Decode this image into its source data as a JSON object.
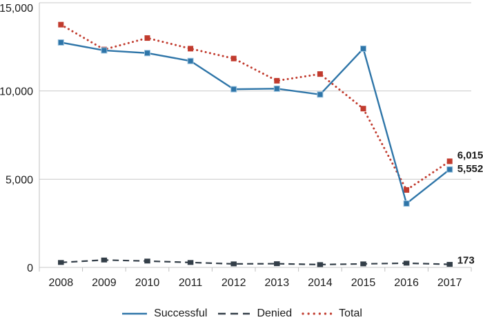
{
  "chart_data": {
    "type": "line",
    "title": "",
    "categories": [
      "2008",
      "2009",
      "2010",
      "2011",
      "2012",
      "2013",
      "2014",
      "2015",
      "2016",
      "2017"
    ],
    "series": [
      {
        "name": "Successful",
        "style": "solid",
        "marker": "square",
        "color": "#2E75A8",
        "marker_edge": "#9CC3DF",
        "values": [
          12750,
          12300,
          12150,
          11700,
          10100,
          10130,
          9800,
          12400,
          3620,
          5552
        ],
        "end_label": "5,552"
      },
      {
        "name": "Denied",
        "style": "dashed",
        "marker": "square",
        "color": "#333E48",
        "marker_edge": "",
        "values": [
          280,
          420,
          360,
          280,
          200,
          210,
          160,
          200,
          240,
          173
        ],
        "end_label": "173"
      },
      {
        "name": "Total",
        "style": "dotted",
        "marker": "square",
        "color": "#C13B2E",
        "marker_edge": "",
        "values": [
          13760,
          12350,
          13000,
          12400,
          11840,
          10580,
          10960,
          9000,
          4390,
          6015
        ],
        "end_label": "6,015"
      }
    ],
    "y_axis": {
      "min": 0,
      "max": 15000,
      "tick_values": [
        0,
        5000,
        10000,
        15000
      ],
      "tick_labels": [
        "0",
        "5,000",
        "10,000",
        "15,000"
      ]
    },
    "x_axis": {
      "tick_labels": [
        "2008",
        "2009",
        "2010",
        "2011",
        "2012",
        "2013",
        "2014",
        "2015",
        "2016",
        "2017"
      ]
    },
    "grid": "horizontal",
    "legend_position": "bottom",
    "colors": {
      "grid": "#C9C9C9",
      "axis": "#BFBFBF",
      "text": "#1A1A1A",
      "end_label_text": "#000000"
    }
  }
}
